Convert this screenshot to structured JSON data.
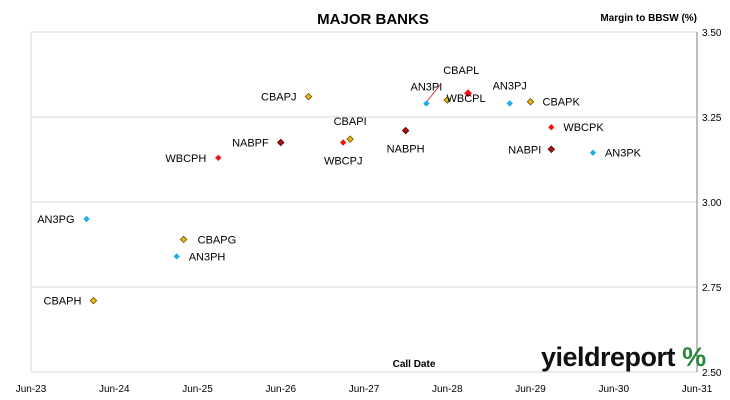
{
  "chart_data": {
    "type": "scatter",
    "title": "MAJOR BANKS",
    "ylabel": "Margin to BBSW (%)",
    "xlabel": "Call Date",
    "ylim": [
      2.5,
      3.5
    ],
    "yticks": [
      "2.50",
      "2.75",
      "3.00",
      "3.25",
      "3.50"
    ],
    "xticks": [
      "Jun-23",
      "Jun-24",
      "Jun-25",
      "Jun-26",
      "Jun-27",
      "Jun-28",
      "Jun-29",
      "Jun-30",
      "Jun-31"
    ],
    "grid": "horizontal",
    "legend": "none",
    "bank_colors": {
      "CBA": "#e9b418",
      "WBC": "#f01515",
      "NAB": "#a61414",
      "ANZ": "#1cb0e8"
    },
    "points": [
      {
        "label": "CBAPH",
        "bank": "CBA",
        "x": "2024-03",
        "y": 2.71
      },
      {
        "label": "AN3PG",
        "bank": "ANZ",
        "x": "2024-02",
        "y": 2.95
      },
      {
        "label": "CBAPG",
        "bank": "CBA",
        "x": "2025-04",
        "y": 2.89
      },
      {
        "label": "AN3PH",
        "bank": "ANZ",
        "x": "2025-03",
        "y": 2.84
      },
      {
        "label": "WBCPH",
        "bank": "WBC",
        "x": "2025-09",
        "y": 3.13
      },
      {
        "label": "NABPF",
        "bank": "NAB",
        "x": "2026-06",
        "y": 3.175
      },
      {
        "label": "CBAPJ",
        "bank": "CBA",
        "x": "2026-10",
        "y": 3.31
      },
      {
        "label": "CBAPI",
        "bank": "CBA",
        "x": "2027-04",
        "y": 3.185
      },
      {
        "label": "WBCPJ",
        "bank": "WBC",
        "x": "2027-03",
        "y": 3.175
      },
      {
        "label": "NABPH",
        "bank": "NAB",
        "x": "2027-12",
        "y": 3.21
      },
      {
        "label": "AN3PI",
        "bank": "ANZ",
        "x": "2028-03",
        "y": 3.29
      },
      {
        "label": "CBAPL",
        "bank": "CBA",
        "x": "2028-06",
        "y": 3.3
      },
      {
        "label": "WBCPL",
        "bank": "WBC",
        "x": "2028-09",
        "y": 3.32
      },
      {
        "label": "AN3PJ",
        "bank": "ANZ",
        "x": "2029-03",
        "y": 3.29
      },
      {
        "label": "CBAPK",
        "bank": "CBA",
        "x": "2029-06",
        "y": 3.295
      },
      {
        "label": "WBCPK",
        "bank": "WBC",
        "x": "2029-09",
        "y": 3.22
      },
      {
        "label": "NABPI",
        "bank": "NAB",
        "x": "2029-09",
        "y": 3.155
      },
      {
        "label": "AN3PK",
        "bank": "ANZ",
        "x": "2030-03",
        "y": 3.145
      }
    ]
  },
  "logo": {
    "text": "yieldreport",
    "pct": "%"
  }
}
